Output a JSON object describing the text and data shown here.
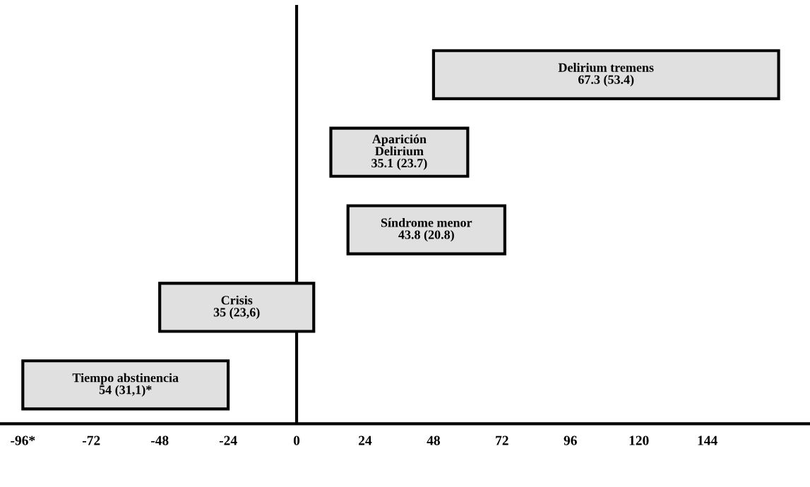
{
  "chart_data": {
    "type": "bar",
    "orientation": "horizontal",
    "categories": [
      null,
      null,
      null,
      null,
      null
    ],
    "base": [
      48,
      12,
      18,
      -48,
      -96
    ],
    "values": [
      121,
      48,
      55,
      54,
      72
    ],
    "color": "#e0e0e0",
    "value_labels": [
      "Delirium tremens\n67.3 (53.4)",
      "Aparición\nDelirium\n35.1 (23.7)",
      "Síndrome menor\n43.8 (20.8)",
      "Crisis\n35 (23,6)",
      "Tiempo abstinencia\n54 (31,1)*"
    ],
    "xlim": [
      -104,
      180
    ],
    "xticks": [
      {
        "value": -96,
        "label": "-96*"
      },
      -72,
      -48,
      -24,
      0,
      24,
      48,
      72,
      96,
      120,
      144
    ],
    "ref_lines": [
      {
        "axis": "x",
        "value": 0,
        "color": "#000000",
        "line_style": "solid"
      }
    ],
    "grid": false,
    "legend": false
  }
}
